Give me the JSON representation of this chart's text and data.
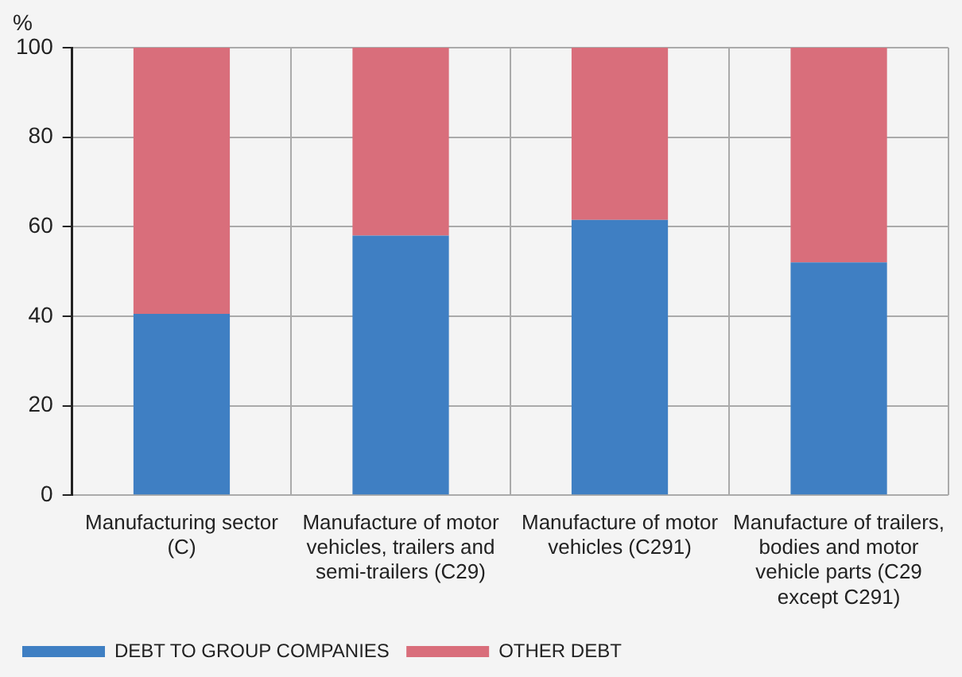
{
  "chart_data": {
    "type": "bar",
    "stacked": true,
    "ylabel": "%",
    "categories": [
      "Manufacturing sector (C)",
      "Manufacture of motor vehicles, trailers and semi-trailers (C29)",
      "Manufacture of motor vehicles (C291)",
      "Manufacture of trailers, bodies and motor vehicle parts (C29 except C291)"
    ],
    "series": [
      {
        "name": "DEBT TO GROUP COMPANIES",
        "color": "#3f7fc3",
        "values": [
          40.5,
          58,
          61.5,
          52
        ]
      },
      {
        "name": "OTHER DEBT",
        "color": "#d96e7b",
        "values": [
          59.5,
          42,
          38.5,
          48
        ]
      }
    ],
    "ylim": [
      0,
      100
    ],
    "yticks": [
      0,
      20,
      40,
      60,
      80,
      100
    ],
    "grid": true,
    "legend": "bottom"
  }
}
